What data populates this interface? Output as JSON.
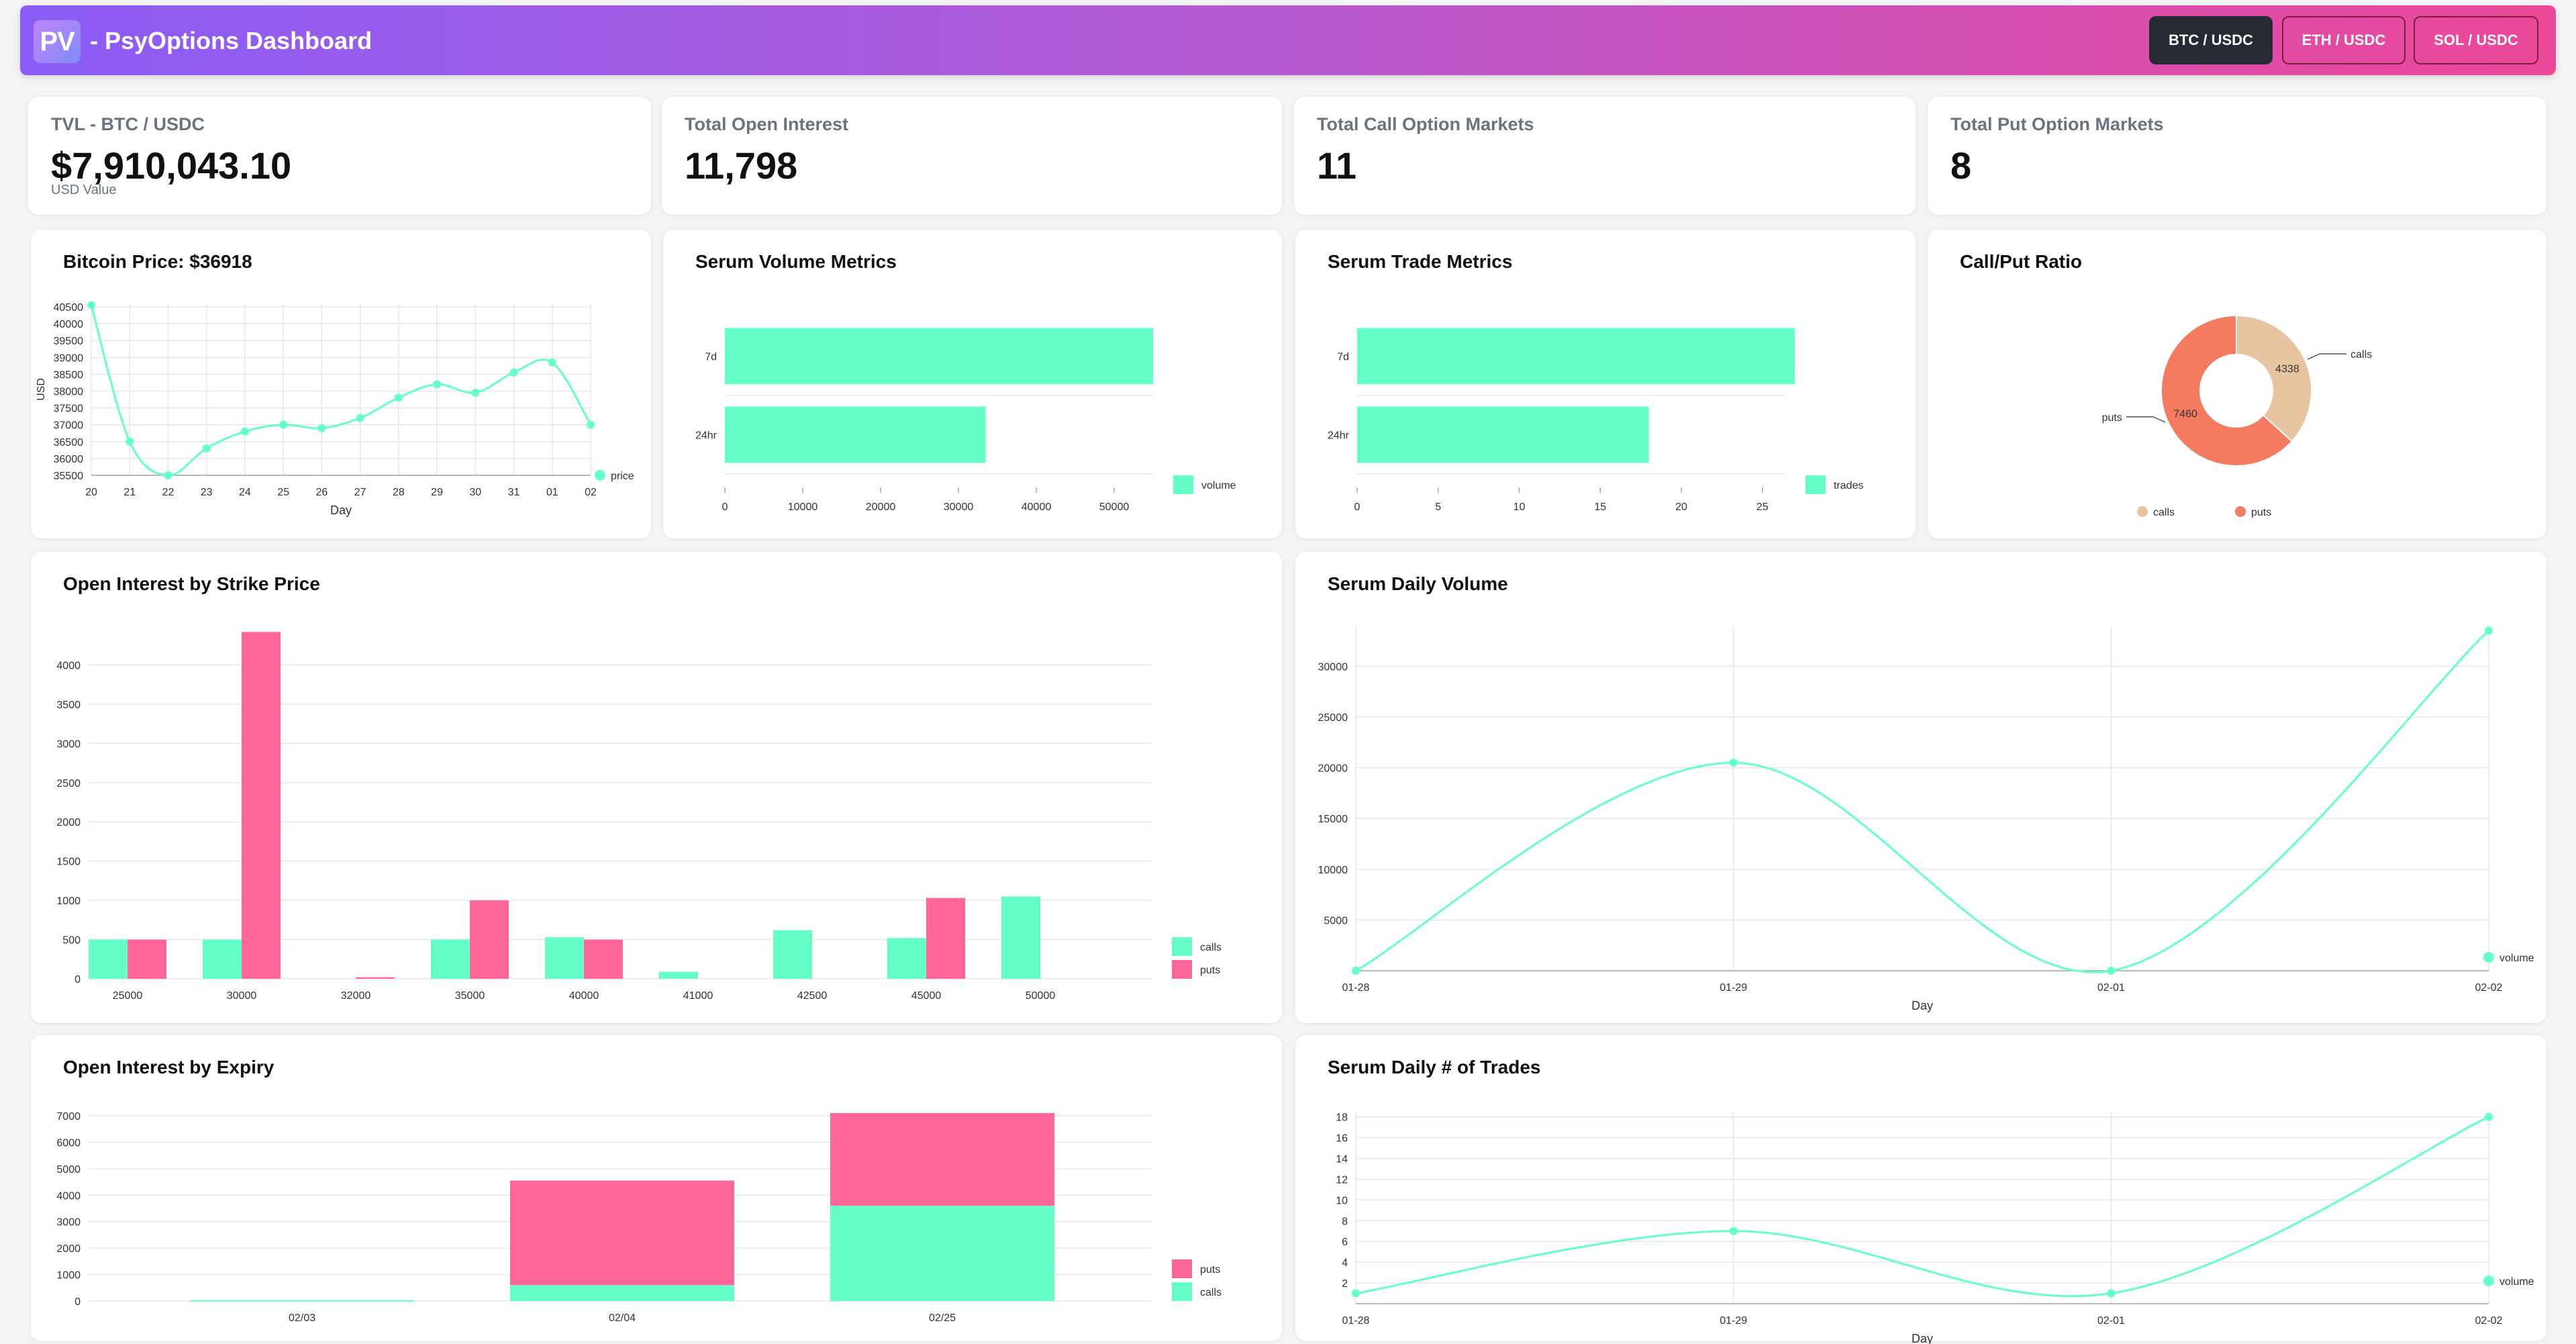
{
  "header": {
    "logo_text": "PV",
    "title": "- PsyOptions Dashboard",
    "pairs": [
      "BTC / USDC",
      "ETH / USDC",
      "SOL / USDC"
    ]
  },
  "colors": {
    "teal": "#66ffc8",
    "pink": "#ff6699",
    "calls_pie": "#e8c4a0",
    "puts_pie": "#f47a60"
  },
  "stats": [
    {
      "label": "TVL - BTC / USDC",
      "value": "$7,910,043.10",
      "sub": "USD Value"
    },
    {
      "label": "Total Open Interest",
      "value": "11,798"
    },
    {
      "label": "Total Call Option Markets",
      "value": "11"
    },
    {
      "label": "Total Put Option Markets",
      "value": "8"
    }
  ],
  "chart_data": [
    {
      "id": "btc",
      "type": "line",
      "title": "Bitcoin Price: $36918",
      "xlabel": "Day",
      "ylabel": "USD",
      "x": [
        "20",
        "21",
        "22",
        "23",
        "24",
        "25",
        "26",
        "27",
        "28",
        "29",
        "30",
        "31",
        "01",
        "02"
      ],
      "series": [
        {
          "name": "price",
          "values": [
            40550,
            36500,
            35500,
            36300,
            36800,
            37000,
            36900,
            37200,
            37800,
            38200,
            37950,
            38550,
            38850,
            37000
          ]
        }
      ],
      "yticks": [
        35500,
        36000,
        36500,
        37000,
        37500,
        38000,
        38500,
        39000,
        39500,
        40000,
        40500
      ],
      "ylim": [
        35500,
        40600
      ]
    },
    {
      "id": "svol",
      "type": "bar",
      "title": "Serum Volume Metrics",
      "orientation": "horizontal",
      "categories": [
        "7d",
        "24hr"
      ],
      "series": [
        {
          "name": "volume",
          "values": [
            55000,
            33500
          ]
        }
      ],
      "xticks": [
        0,
        10000,
        20000,
        30000,
        40000,
        50000
      ],
      "xlim": [
        0,
        55000
      ]
    },
    {
      "id": "strade",
      "type": "bar",
      "title": "Serum Trade Metrics",
      "orientation": "horizontal",
      "categories": [
        "7d",
        "24hr"
      ],
      "series": [
        {
          "name": "trades",
          "values": [
            27,
            18
          ]
        }
      ],
      "xticks": [
        0,
        5,
        10,
        15,
        20,
        25
      ],
      "xlim": [
        0,
        27
      ]
    },
    {
      "id": "cp",
      "type": "pie",
      "title": "Call/Put Ratio",
      "categories": [
        "calls",
        "puts"
      ],
      "values": [
        4338,
        7460
      ],
      "data_labels": [
        "4338",
        "7460"
      ]
    },
    {
      "id": "ois",
      "type": "bar",
      "title": "Open Interest by Strike Price",
      "categories": [
        "25000",
        "30000",
        "32000",
        "35000",
        "40000",
        "41000",
        "42500",
        "45000",
        "50000"
      ],
      "series": [
        {
          "name": "calls",
          "values": [
            500,
            500,
            0,
            500,
            530,
            90,
            620,
            520,
            1050
          ]
        },
        {
          "name": "puts",
          "values": [
            500,
            4420,
            20,
            1000,
            500,
            0,
            0,
            1030,
            0
          ]
        }
      ],
      "yticks": [
        0,
        500,
        1000,
        1500,
        2000,
        2500,
        3000,
        3500,
        4000
      ],
      "ylim": [
        0,
        4500
      ]
    },
    {
      "id": "sdv",
      "type": "line",
      "title": "Serum Daily Volume",
      "xlabel": "Day",
      "x": [
        "01-28",
        "01-29",
        "02-01",
        "02-02"
      ],
      "series": [
        {
          "name": "volume",
          "values": [
            0,
            20500,
            0,
            33500
          ]
        }
      ],
      "yticks": [
        5000,
        10000,
        15000,
        20000,
        25000,
        30000
      ],
      "ylim": [
        0,
        34000
      ]
    },
    {
      "id": "oie",
      "type": "bar",
      "title": "Open Interest by Expiry",
      "stacked": true,
      "categories": [
        "02/03",
        "02/04",
        "02/25"
      ],
      "series": [
        {
          "name": "puts",
          "values": [
            0,
            3950,
            3500
          ]
        },
        {
          "name": "calls",
          "values": [
            30,
            600,
            3600
          ]
        }
      ],
      "yticks": [
        0,
        1000,
        2000,
        3000,
        4000,
        5000,
        6000,
        7000
      ],
      "ylim": [
        0,
        7100
      ]
    },
    {
      "id": "sdt",
      "type": "line",
      "title": "Serum Daily # of Trades",
      "xlabel": "Day",
      "x": [
        "01-28",
        "01-29",
        "02-01",
        "02-02"
      ],
      "series": [
        {
          "name": "volume",
          "values": [
            1,
            7,
            1,
            18
          ]
        }
      ],
      "yticks": [
        2,
        4,
        6,
        8,
        10,
        12,
        14,
        16,
        18
      ],
      "ylim": [
        0,
        18.5
      ]
    }
  ]
}
